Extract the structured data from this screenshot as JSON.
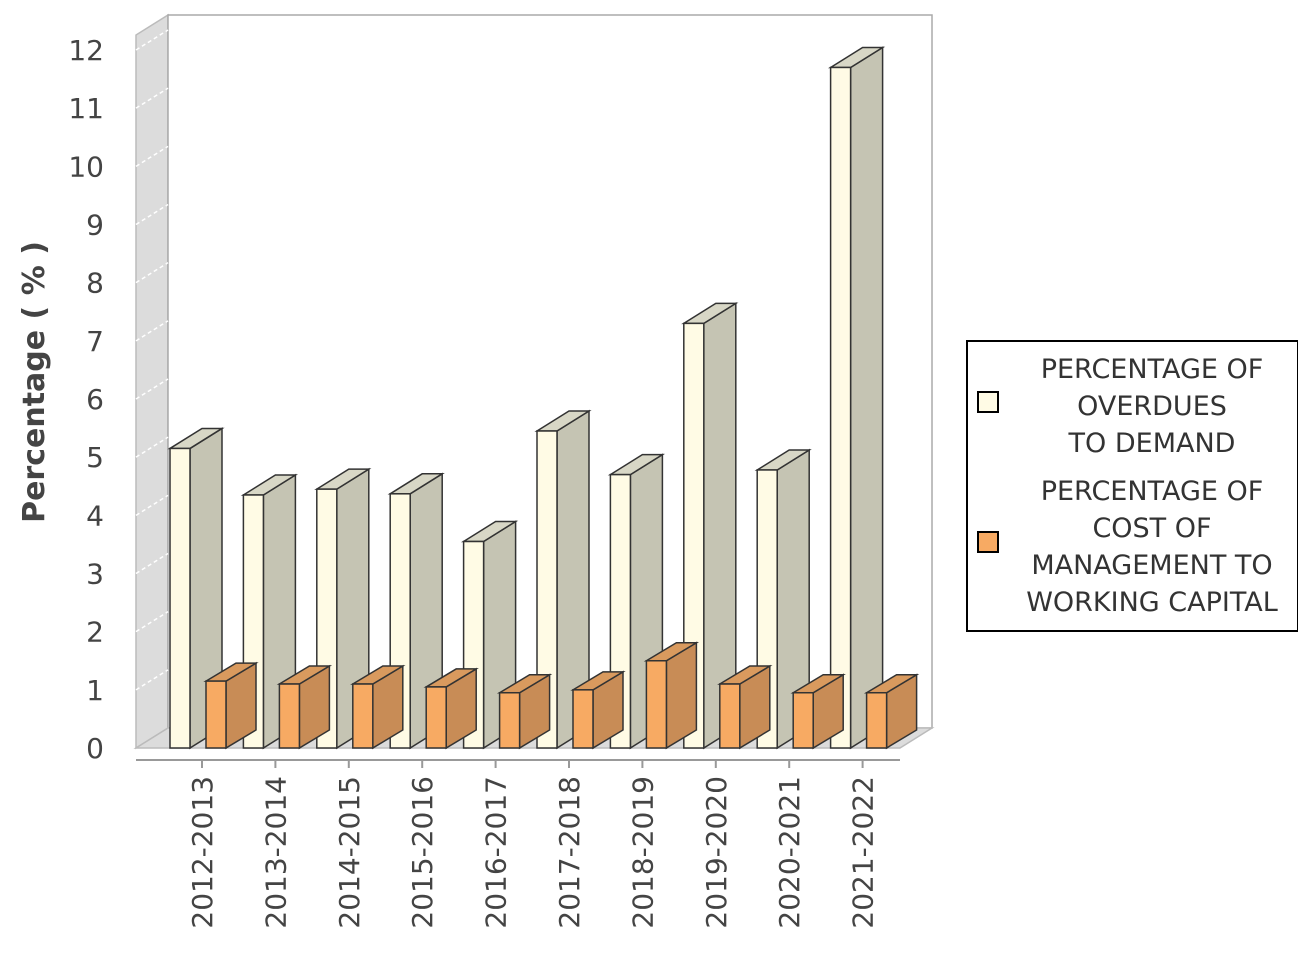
{
  "chart_data": {
    "type": "bar",
    "categories": [
      "2012-2013",
      "2013-2014",
      "2014-2015",
      "2015-2016",
      "2016-2017",
      "2017-2018",
      "2018-2019",
      "2019-2020",
      "2020-2021",
      "2021-2022"
    ],
    "series": [
      {
        "name": "PERCENTAGE OF OVERDUES TO DEMAND",
        "name_lines": [
          "PERCENTAGE OF",
          "OVERDUES",
          "TO DEMAND"
        ],
        "color": "#fffbe5",
        "side_color": "#c5c4b3",
        "top_color": "#d8d7c6",
        "values": [
          5.15,
          4.35,
          4.45,
          4.37,
          3.55,
          5.45,
          4.7,
          7.3,
          4.78,
          11.7
        ]
      },
      {
        "name": "PERCENTAGE OF COST OF MANAGEMENT TO WORKING CAPITAL",
        "name_lines": [
          "PERCENTAGE OF",
          "COST OF",
          "MANAGEMENT TO",
          "WORKING CAPITAL"
        ],
        "color": "#f7aa63",
        "side_color": "#c88c56",
        "top_color": "#d99a5e",
        "values": [
          1.15,
          1.1,
          1.1,
          1.05,
          0.95,
          1.0,
          1.5,
          1.1,
          0.95,
          0.95
        ]
      }
    ],
    "xlabel": "",
    "ylabel": "Percentage ( % )",
    "ylim": [
      0,
      12
    ],
    "yticks": [
      0,
      1,
      2,
      3,
      4,
      5,
      6,
      7,
      8,
      9,
      10,
      11,
      12
    ],
    "grid": true,
    "three_d": true,
    "legend": "right"
  }
}
